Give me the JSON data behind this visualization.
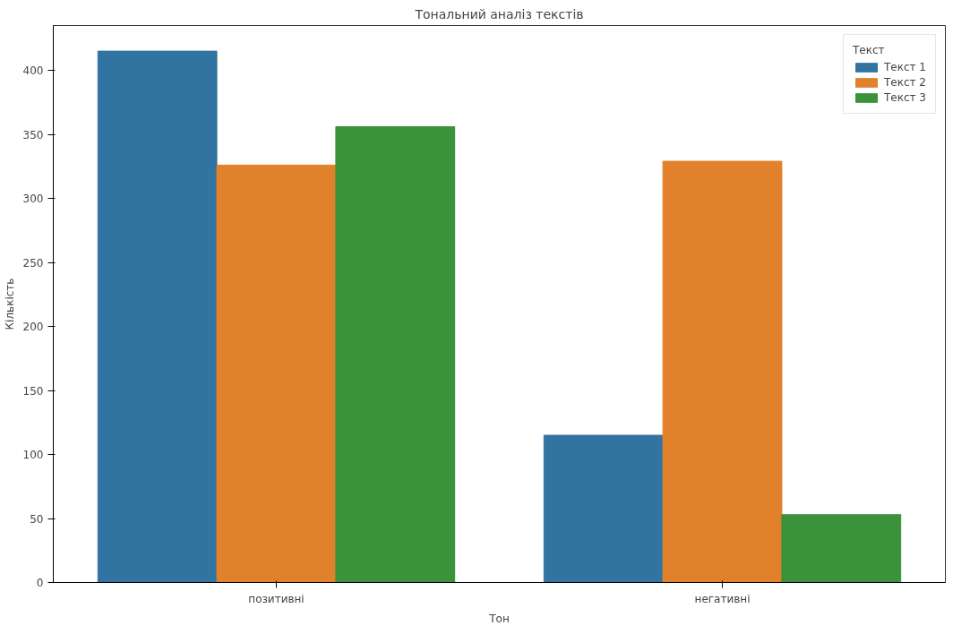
{
  "chart_data": {
    "type": "bar",
    "title": "Тональний аналіз текстів",
    "xlabel": "Тон",
    "ylabel": "Кількість",
    "legend_title": "Текст",
    "categories": [
      "позитивні",
      "негативні"
    ],
    "series": [
      {
        "name": "Текст 1",
        "color": "#3274a1",
        "values": [
          415,
          115
        ]
      },
      {
        "name": "Текст 2",
        "color": "#e1812c",
        "values": [
          326,
          329
        ]
      },
      {
        "name": "Текст 3",
        "color": "#3a923a",
        "values": [
          356,
          53
        ]
      }
    ],
    "ylim": [
      0,
      435
    ],
    "yticks": [
      0,
      50,
      100,
      150,
      200,
      250,
      300,
      350,
      400
    ],
    "grid": false,
    "legend": "top right"
  }
}
